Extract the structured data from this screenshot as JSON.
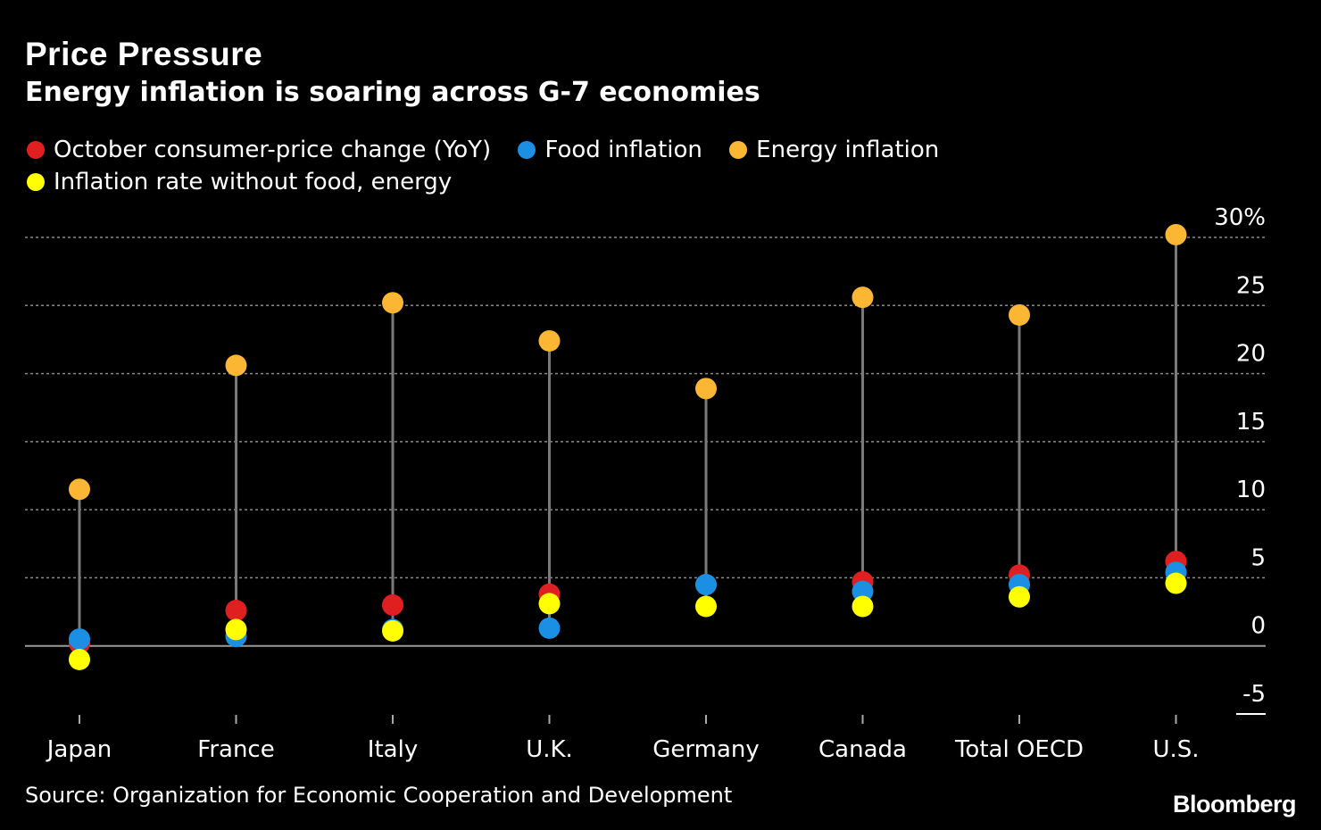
{
  "header": {
    "title": "Price Pressure",
    "subtitle": "Energy inflation is soaring across G-7 economies"
  },
  "legend": {
    "items": [
      {
        "label": "October consumer-price change (YoY)",
        "color": "#e02020"
      },
      {
        "label": "Food inflation",
        "color": "#1a8fe3"
      },
      {
        "label": "Energy inflation",
        "color": "#fbb634"
      },
      {
        "label": "Inflation rate without food, energy",
        "color": "#ffff00"
      }
    ]
  },
  "footer": {
    "source": "Source: Organization for Economic Cooperation and Development",
    "logo": "Bloomberg"
  },
  "chart_data": {
    "type": "scatter",
    "title": "Price Pressure",
    "subtitle": "Energy inflation is soaring across G-7 economies",
    "xlabel": "",
    "ylabel": "",
    "categories": [
      "Japan",
      "France",
      "Italy",
      "U.K.",
      "Germany",
      "Canada",
      "Total OECD",
      "U.S."
    ],
    "ylim": [
      -5,
      30
    ],
    "yticks": [
      -5,
      0,
      5,
      10,
      15,
      20,
      25,
      30
    ],
    "ytick_labels": [
      "-5",
      "0",
      "5",
      "10",
      "15",
      "20",
      "25",
      "30%"
    ],
    "grid": true,
    "legend_position": "top-left",
    "series": [
      {
        "name": "October consumer-price change (YoY)",
        "color": "#e02020",
        "values": [
          0.2,
          2.6,
          3.0,
          3.8,
          4.5,
          4.7,
          5.2,
          6.2
        ]
      },
      {
        "name": "Food inflation",
        "color": "#1a8fe3",
        "values": [
          0.5,
          0.7,
          1.2,
          1.3,
          4.5,
          4.0,
          4.5,
          5.4
        ]
      },
      {
        "name": "Energy inflation",
        "color": "#fbb634",
        "values": [
          11.5,
          20.6,
          25.2,
          22.4,
          18.9,
          25.6,
          24.3,
          30.2
        ]
      },
      {
        "name": "Inflation rate without food, energy",
        "color": "#ffff00",
        "values": [
          -1.0,
          1.2,
          1.1,
          3.1,
          2.9,
          2.9,
          3.6,
          4.6
        ]
      }
    ]
  }
}
